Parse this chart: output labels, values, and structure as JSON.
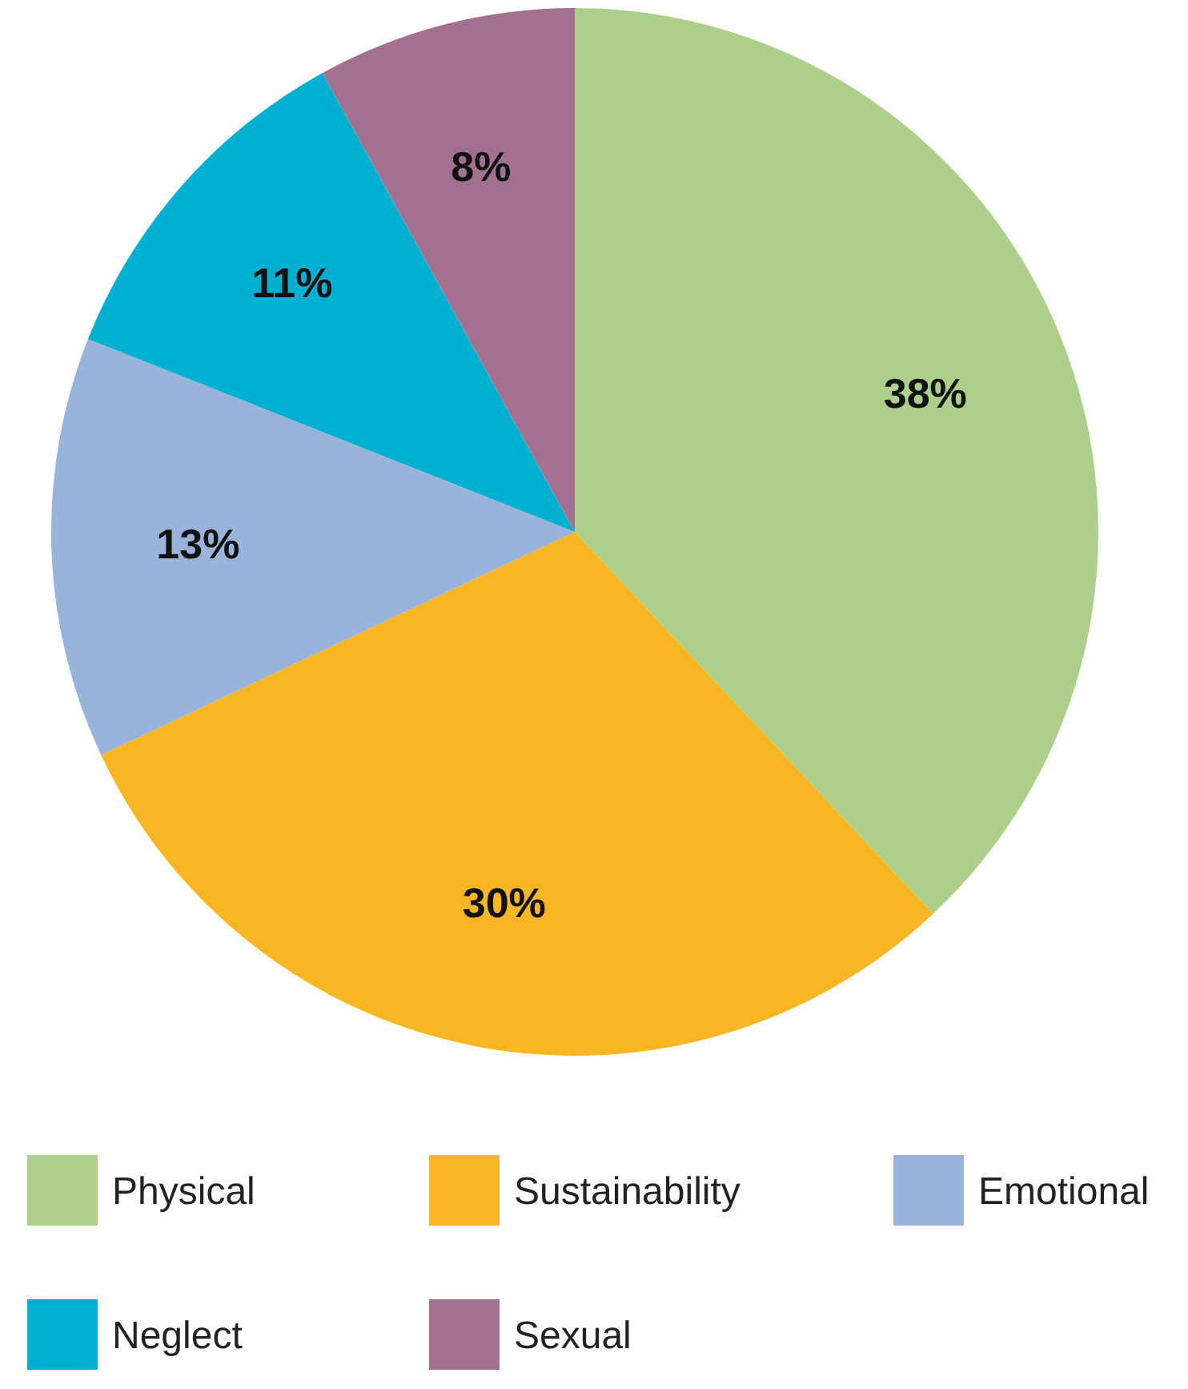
{
  "chart_data": {
    "type": "pie",
    "categories": [
      "Physical",
      "Sustainability",
      "Emotional",
      "Neglect",
      "Sexual"
    ],
    "values": [
      38,
      30,
      13,
      11,
      8
    ],
    "colors": [
      "#acd08a",
      "#f8b722",
      "#9ab3dc",
      "#00b0d0",
      "#a2718f"
    ],
    "value_labels": [
      "38%",
      "30%",
      "13%",
      "11%",
      "8%"
    ],
    "legend": "bottom"
  }
}
